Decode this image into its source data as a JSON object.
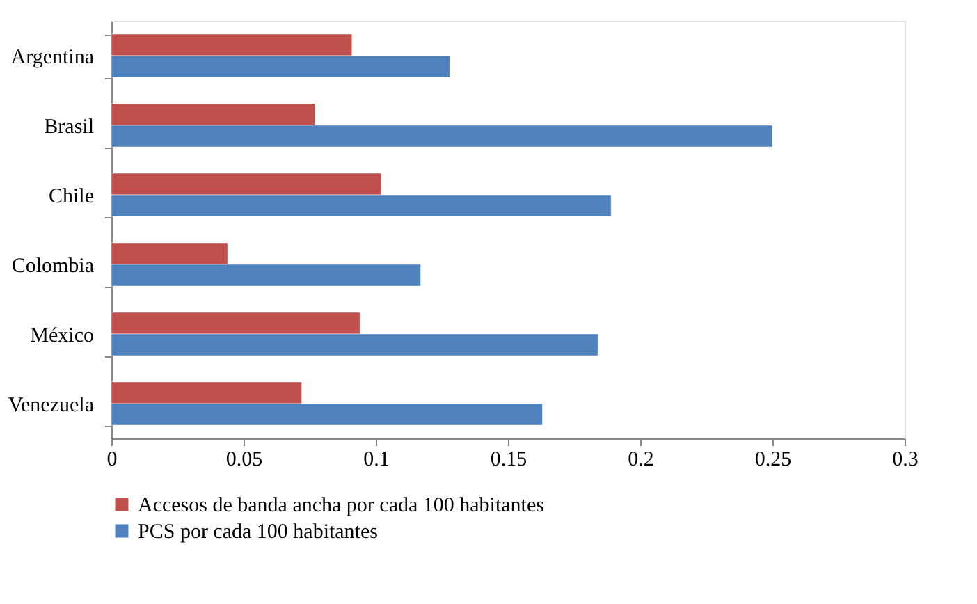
{
  "chart_data": {
    "type": "bar",
    "orientation": "horizontal",
    "categories": [
      "Argentina",
      "Brasil",
      "Chile",
      "Colombia",
      "México",
      "Venezuela"
    ],
    "series": [
      {
        "name": "Accesos de banda ancha por cada 100 habitantes",
        "color": "#c0504d",
        "values": [
          0.091,
          0.077,
          0.102,
          0.044,
          0.094,
          0.072
        ]
      },
      {
        "name": "PCS por cada 100 habitantes",
        "color": "#4f81bd",
        "values": [
          0.128,
          0.25,
          0.189,
          0.117,
          0.184,
          0.163
        ]
      }
    ],
    "xlim": [
      0,
      0.3
    ],
    "xticks": [
      0,
      0.05,
      0.1,
      0.15,
      0.2,
      0.25,
      0.3
    ],
    "grid": false,
    "legend": "bottom"
  }
}
